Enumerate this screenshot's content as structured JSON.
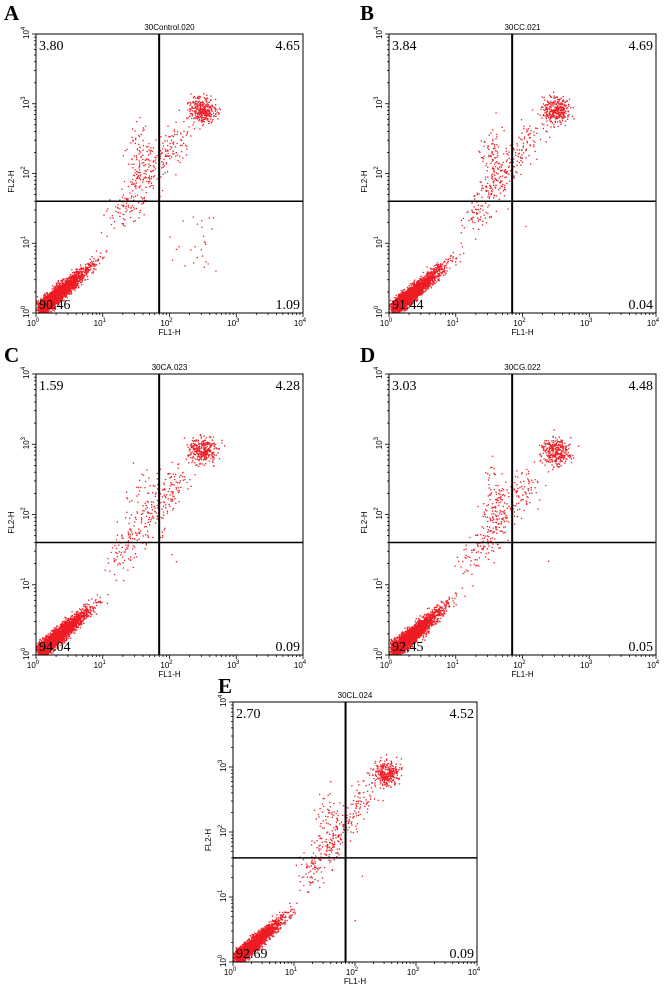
{
  "figure": {
    "colors": {
      "dots": "#ee1c24",
      "axes": "#000000",
      "background": "#ffffff"
    }
  },
  "chart_data": [
    {
      "type": "scatter",
      "panel": "A",
      "title": "30Control.020",
      "xlabel": "FL1-H",
      "ylabel": "FL2-H",
      "xscale": "log",
      "yscale": "log",
      "xlim": [
        1,
        10000
      ],
      "ylim": [
        1,
        10000
      ],
      "x_ticks": [
        "10",
        "10",
        "10",
        "10",
        "10"
      ],
      "x_tick_exponents": [
        "0",
        "1",
        "2",
        "3",
        "4"
      ],
      "y_ticks": [
        "10",
        "10",
        "10",
        "10",
        "10"
      ],
      "y_tick_exponents": [
        "0",
        "1",
        "2",
        "3",
        "4"
      ],
      "gate": {
        "x": 70,
        "y": 40
      },
      "quadrants": {
        "upper_left": "3.80",
        "upper_right": "4.65",
        "lower_left": "90.46",
        "lower_right": "1.09"
      }
    },
    {
      "type": "scatter",
      "panel": "B",
      "title": "30CC.021",
      "xlabel": "FL1-H",
      "ylabel": "FL2-H",
      "xscale": "log",
      "yscale": "log",
      "xlim": [
        1,
        10000
      ],
      "ylim": [
        1,
        10000
      ],
      "x_ticks": [
        "10",
        "10",
        "10",
        "10",
        "10"
      ],
      "x_tick_exponents": [
        "0",
        "1",
        "2",
        "3",
        "4"
      ],
      "y_ticks": [
        "10",
        "10",
        "10",
        "10",
        "10"
      ],
      "y_tick_exponents": [
        "0",
        "1",
        "2",
        "3",
        "4"
      ],
      "gate": {
        "x": 70,
        "y": 40
      },
      "quadrants": {
        "upper_left": "3.84",
        "upper_right": "4.69",
        "lower_left": "91.44",
        "lower_right": "0.04"
      }
    },
    {
      "type": "scatter",
      "panel": "C",
      "title": "30CA.023",
      "xlabel": "FL1-H",
      "ylabel": "FL2-H",
      "xscale": "log",
      "yscale": "log",
      "xlim": [
        1,
        10000
      ],
      "ylim": [
        1,
        10000
      ],
      "x_ticks": [
        "10",
        "10",
        "10",
        "10",
        "10"
      ],
      "x_tick_exponents": [
        "0",
        "1",
        "2",
        "3",
        "4"
      ],
      "y_ticks": [
        "10",
        "10",
        "10",
        "10",
        "10"
      ],
      "y_tick_exponents": [
        "0",
        "1",
        "2",
        "3",
        "4"
      ],
      "gate": {
        "x": 70,
        "y": 40
      },
      "quadrants": {
        "upper_left": "1.59",
        "upper_right": "4.28",
        "lower_left": "94.04",
        "lower_right": "0.09"
      }
    },
    {
      "type": "scatter",
      "panel": "D",
      "title": "30CG.022",
      "xlabel": "FL1-H",
      "ylabel": "FL2-H",
      "xscale": "log",
      "yscale": "log",
      "xlim": [
        1,
        10000
      ],
      "ylim": [
        1,
        10000
      ],
      "x_ticks": [
        "10",
        "10",
        "10",
        "10",
        "10"
      ],
      "x_tick_exponents": [
        "0",
        "1",
        "2",
        "3",
        "4"
      ],
      "y_ticks": [
        "10",
        "10",
        "10",
        "10",
        "10"
      ],
      "y_tick_exponents": [
        "0",
        "1",
        "2",
        "3",
        "4"
      ],
      "gate": {
        "x": 70,
        "y": 40
      },
      "quadrants": {
        "upper_left": "3.03",
        "upper_right": "4.48",
        "lower_left": "92.45",
        "lower_right": "0.05"
      }
    },
    {
      "type": "scatter",
      "panel": "E",
      "title": "30CL.024",
      "xlabel": "FL1-H",
      "ylabel": "FL2-H",
      "xscale": "log",
      "yscale": "log",
      "xlim": [
        1,
        10000
      ],
      "ylim": [
        1,
        10000
      ],
      "x_ticks": [
        "10",
        "10",
        "10",
        "10",
        "10"
      ],
      "x_tick_exponents": [
        "0",
        "1",
        "2",
        "3",
        "4"
      ],
      "y_ticks": [
        "10",
        "10",
        "10",
        "10",
        "10"
      ],
      "y_tick_exponents": [
        "0",
        "1",
        "2",
        "3",
        "4"
      ],
      "gate": {
        "x": 70,
        "y": 40
      },
      "quadrants": {
        "upper_left": "2.70",
        "upper_right": "4.52",
        "lower_left": "92.69",
        "lower_right": "0.09"
      }
    }
  ]
}
